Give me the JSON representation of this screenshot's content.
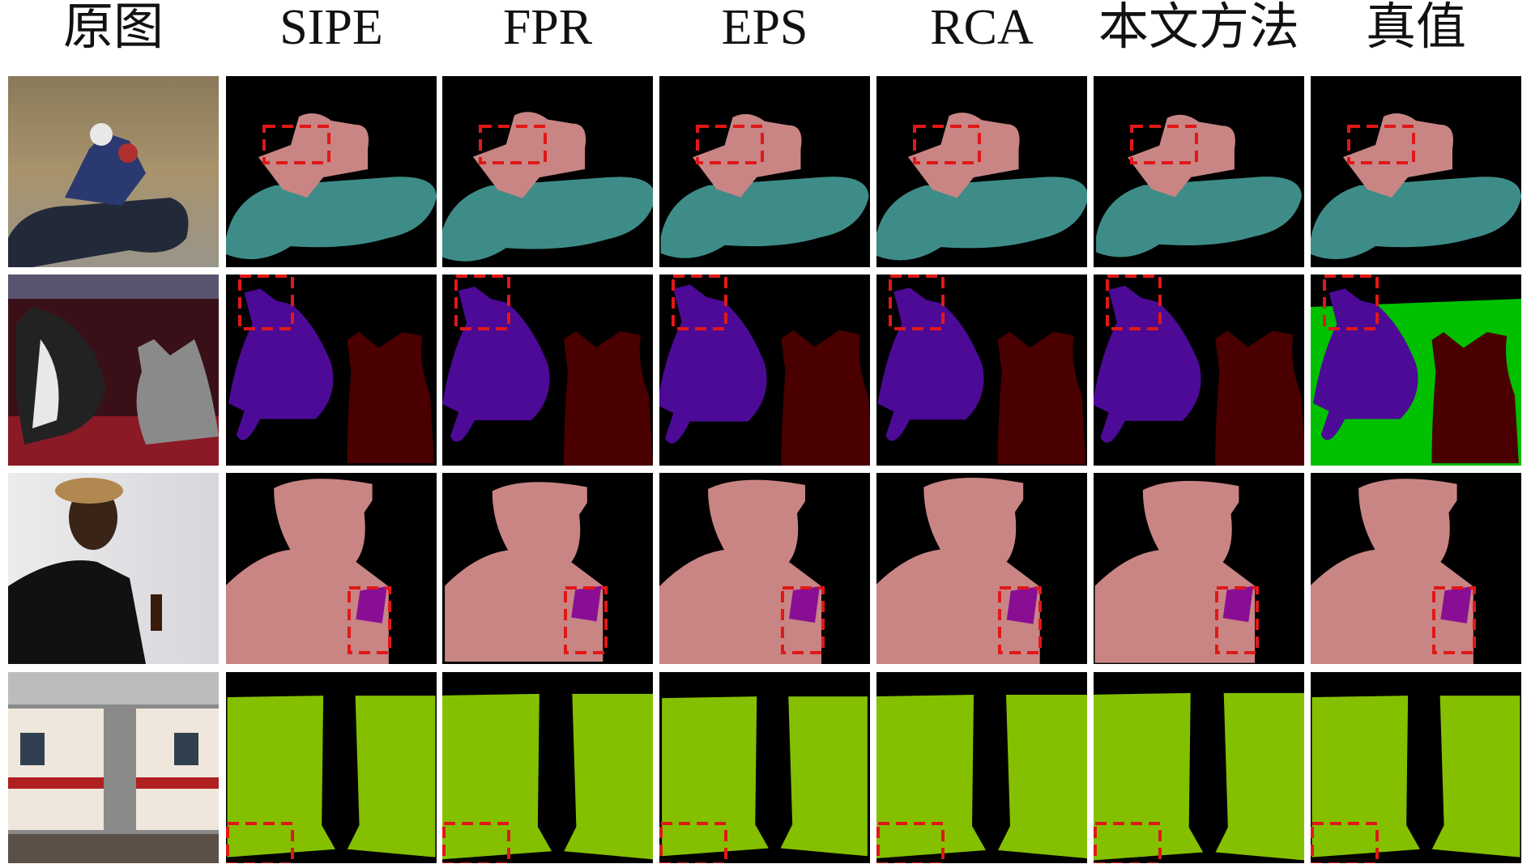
{
  "headers": [
    "原图",
    "SIPE",
    "FPR",
    "EPS",
    "RCA",
    "本文方法",
    "真值"
  ]
}
